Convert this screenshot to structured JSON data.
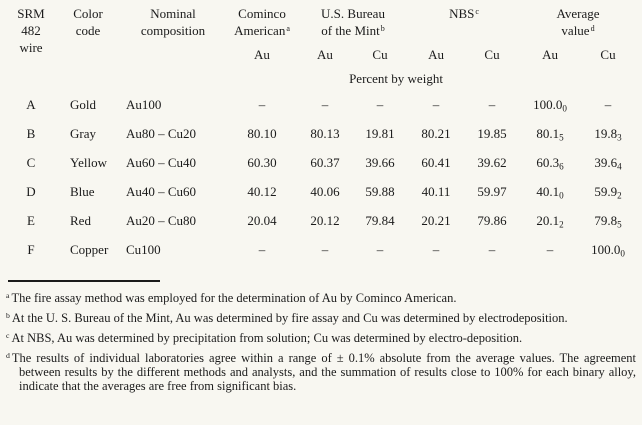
{
  "table": {
    "headers": {
      "srm_line1": "SRM 482",
      "srm_line2": "wire",
      "color_line1": "Color",
      "color_line2": "code",
      "nominal_line1": "Nominal",
      "nominal_line2": "composition",
      "cominco_line1": "Cominco",
      "cominco_line2": "American",
      "cominco_note": "a",
      "mint_line1": "U.S. Bureau",
      "mint_line2": "of the Mint",
      "mint_note": "b",
      "nbs_label": "NBS",
      "nbs_note": "c",
      "avg_line1": "Average",
      "avg_line2": "value",
      "avg_note": "d",
      "au_label": "Au",
      "cu_label": "Cu",
      "percent_caption": "Percent by weight"
    },
    "rows": [
      {
        "wire": "A",
        "color": "Gold",
        "composition": "Au100",
        "cominco_au": "–",
        "mint_au": "–",
        "mint_cu": "–",
        "nbs_au": "–",
        "nbs_cu": "–",
        "avg_au": {
          "v": "100.0",
          "s": "0"
        },
        "avg_cu": "–"
      },
      {
        "wire": "B",
        "color": "Gray",
        "composition": "Au80 – Cu20",
        "cominco_au": "80.10",
        "mint_au": "80.13",
        "mint_cu": "19.81",
        "nbs_au": "80.21",
        "nbs_cu": "19.85",
        "avg_au": {
          "v": "80.1",
          "s": "5"
        },
        "avg_cu": {
          "v": "19.8",
          "s": "3"
        }
      },
      {
        "wire": "C",
        "color": "Yellow",
        "composition": "Au60 – Cu40",
        "cominco_au": "60.30",
        "mint_au": "60.37",
        "mint_cu": "39.66",
        "nbs_au": "60.41",
        "nbs_cu": "39.62",
        "avg_au": {
          "v": "60.3",
          "s": "6"
        },
        "avg_cu": {
          "v": "39.6",
          "s": "4"
        }
      },
      {
        "wire": "D",
        "color": "Blue",
        "composition": "Au40 – Cu60",
        "cominco_au": "40.12",
        "mint_au": "40.06",
        "mint_cu": "59.88",
        "nbs_au": "40.11",
        "nbs_cu": "59.97",
        "avg_au": {
          "v": "40.1",
          "s": "0"
        },
        "avg_cu": {
          "v": "59.9",
          "s": "2"
        }
      },
      {
        "wire": "E",
        "color": "Red",
        "composition": "Au20 – Cu80",
        "cominco_au": "20.04",
        "mint_au": "20.12",
        "mint_cu": "79.84",
        "nbs_au": "20.21",
        "nbs_cu": "79.86",
        "avg_au": {
          "v": "20.1",
          "s": "2"
        },
        "avg_cu": {
          "v": "79.8",
          "s": "5"
        }
      },
      {
        "wire": "F",
        "color": "Copper",
        "composition": "Cu100",
        "cominco_au": "–",
        "mint_au": "–",
        "mint_cu": "–",
        "nbs_au": "–",
        "nbs_cu": "–",
        "avg_au": "–",
        "avg_cu": {
          "v": "100.0",
          "s": "0"
        }
      }
    ]
  },
  "footnotes": [
    {
      "mark": "a",
      "text": "The fire assay method was employed for the determination of Au by Cominco American."
    },
    {
      "mark": "b",
      "text": "At the U. S. Bureau of the Mint, Au was determined by fire assay and Cu was determined by electrodeposition."
    },
    {
      "mark": "c",
      "text": "At NBS, Au was determined by precipitation from solution; Cu was determined by electro-deposition."
    },
    {
      "mark": "d",
      "text": "The results of individual laboratories agree within a range of ± 0.1% absolute from the average values. The agreement between results by the different methods and analysts, and the summation of results close to 100% for each binary alloy, indicate that the averages are free from significant bias."
    }
  ]
}
